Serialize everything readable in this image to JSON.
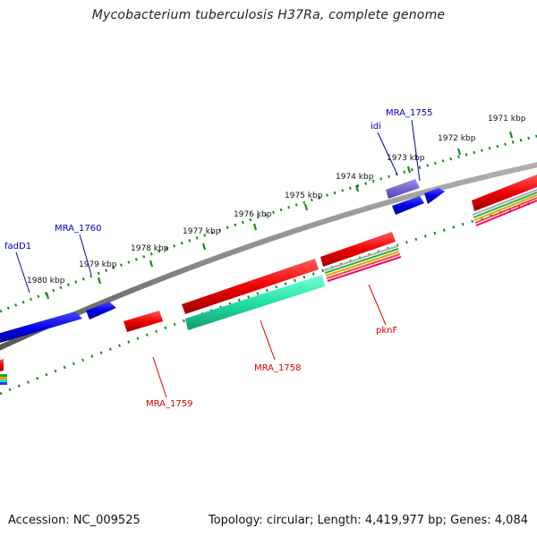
{
  "title": "Mycobacterium tuberculosis H37Ra, complete genome",
  "footer": {
    "accession": "Accession: NC_009525",
    "summary": "Topology: circular; Length: 4,419,977 bp; Genes: 4,084"
  },
  "colors": {
    "backbone": "#8c8c8c",
    "ruler_ticks": "#1a8a1a",
    "plus_strand_gene": "#0000e6",
    "minus_strand_gene": "#ee0000",
    "tRNA_like": "#7a66cc",
    "teal_feature": "#22e0a6",
    "plus_label": "#0000bb",
    "minus_label": "#dd0000"
  },
  "ruler_labels": [
    "1971 kbp",
    "1972 kbp",
    "1973 kbp",
    "1974 kbp",
    "1975 kbp",
    "1976 kbp",
    "1977 kbp",
    "1978 kbp",
    "1979 kbp",
    "1980 kbp"
  ],
  "gene_labels": {
    "plus": [
      "MRA_1755",
      "idi",
      "MRA_1760",
      "fadD1"
    ],
    "minus": [
      "pknF",
      "MRA_1758",
      "MRA_1759"
    ]
  }
}
